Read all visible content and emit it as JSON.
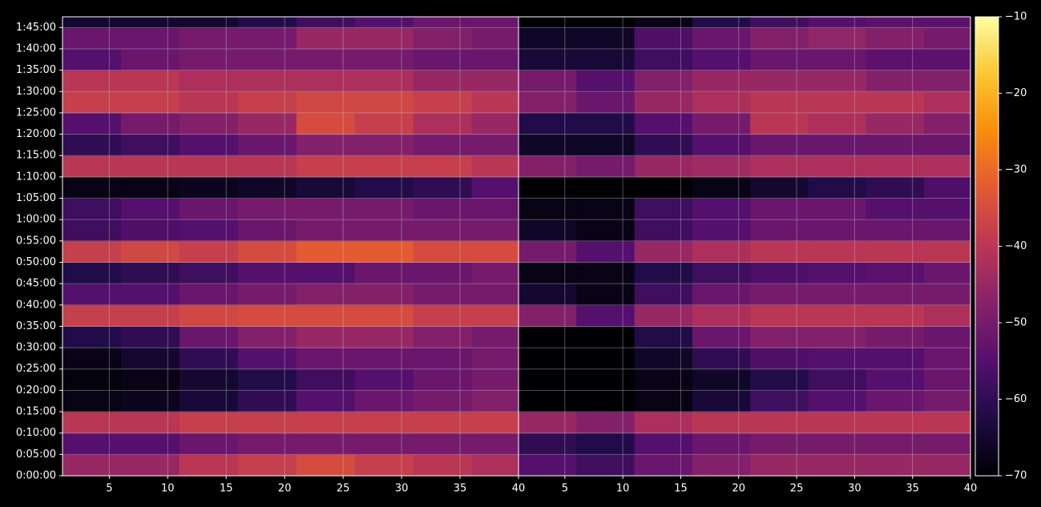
{
  "chart_data": {
    "type": "heatmap",
    "colormap": "inferno",
    "grid": true,
    "ylim": [
      0,
      6450
    ],
    "yticks": [
      {
        "value": 0,
        "label": "0:00:00"
      },
      {
        "value": 300,
        "label": "0:05:00"
      },
      {
        "value": 600,
        "label": "0:10:00"
      },
      {
        "value": 900,
        "label": "0:15:00"
      },
      {
        "value": 1200,
        "label": "0:20:00"
      },
      {
        "value": 1500,
        "label": "0:25:00"
      },
      {
        "value": 1800,
        "label": "0:30:00"
      },
      {
        "value": 2100,
        "label": "0:35:00"
      },
      {
        "value": 2400,
        "label": "0:40:00"
      },
      {
        "value": 2700,
        "label": "0:45:00"
      },
      {
        "value": 3000,
        "label": "0:50:00"
      },
      {
        "value": 3300,
        "label": "0:55:00"
      },
      {
        "value": 3600,
        "label": "1:00:00"
      },
      {
        "value": 3900,
        "label": "1:05:00"
      },
      {
        "value": 4200,
        "label": "1:10:00"
      },
      {
        "value": 4500,
        "label": "1:15:00"
      },
      {
        "value": 4800,
        "label": "1:20:00"
      },
      {
        "value": 5100,
        "label": "1:25:00"
      },
      {
        "value": 5400,
        "label": "1:30:00"
      },
      {
        "value": 5700,
        "label": "1:35:00"
      },
      {
        "value": 6000,
        "label": "1:40:00"
      },
      {
        "value": 6300,
        "label": "1:45:00"
      }
    ],
    "y_edges": [
      0,
      300,
      600,
      900,
      1200,
      1500,
      1800,
      2100,
      2400,
      2700,
      3000,
      3300,
      3600,
      3900,
      4200,
      4500,
      4800,
      5100,
      5400,
      5700,
      6000,
      6300,
      6450
    ],
    "colorbar": {
      "lim": [
        -70,
        -10
      ],
      "ticks": [
        {
          "value": -10,
          "label": "−10"
        },
        {
          "value": -20,
          "label": "−20"
        },
        {
          "value": -30,
          "label": "−30"
        },
        {
          "value": -40,
          "label": "−40"
        },
        {
          "value": -50,
          "label": "−50"
        },
        {
          "value": -60,
          "label": "−60"
        },
        {
          "value": -70,
          "label": "−70"
        }
      ]
    },
    "panels": [
      {
        "xlim": [
          1,
          40
        ],
        "xticks": [
          5,
          10,
          15,
          20,
          25,
          30,
          35,
          40
        ],
        "x_edges": [
          1,
          6,
          11,
          16,
          21,
          26,
          31,
          36,
          40
        ],
        "values": [
          [
            -45,
            -45,
            -40,
            -38,
            -35,
            -38,
            -40,
            -42
          ],
          [
            -55,
            -55,
            -52,
            -50,
            -50,
            -50,
            -50,
            -50
          ],
          [
            -40,
            -40,
            -38,
            -38,
            -38,
            -38,
            -38,
            -38
          ],
          [
            -68,
            -67,
            -64,
            -60,
            -55,
            -52,
            -50,
            -48
          ],
          [
            -69,
            -68,
            -65,
            -62,
            -58,
            -55,
            -52,
            -50
          ],
          [
            -68,
            -65,
            -60,
            -55,
            -52,
            -52,
            -52,
            -50
          ],
          [
            -62,
            -60,
            -52,
            -48,
            -45,
            -45,
            -48,
            -50
          ],
          [
            -38,
            -38,
            -36,
            -35,
            -35,
            -35,
            -38,
            -38
          ],
          [
            -55,
            -55,
            -52,
            -50,
            -48,
            -48,
            -50,
            -50
          ],
          [
            -62,
            -60,
            -58,
            -55,
            -55,
            -52,
            -52,
            -50
          ],
          [
            -38,
            -36,
            -38,
            -35,
            -32,
            -32,
            -35,
            -35
          ],
          [
            -58,
            -56,
            -55,
            -52,
            -50,
            -50,
            -50,
            -50
          ],
          [
            -58,
            -55,
            -52,
            -50,
            -50,
            -50,
            -52,
            -52
          ],
          [
            -68,
            -68,
            -67,
            -66,
            -64,
            -62,
            -60,
            -55
          ],
          [
            -40,
            -40,
            -40,
            -40,
            -38,
            -38,
            -38,
            -40
          ],
          [
            -60,
            -58,
            -55,
            -52,
            -48,
            -48,
            -50,
            -50
          ],
          [
            -55,
            -50,
            -48,
            -45,
            -35,
            -38,
            -42,
            -45
          ],
          [
            -38,
            -38,
            -40,
            -38,
            -36,
            -36,
            -38,
            -40
          ],
          [
            -40,
            -40,
            -42,
            -42,
            -42,
            -42,
            -45,
            -45
          ],
          [
            -55,
            -52,
            -50,
            -50,
            -50,
            -50,
            -52,
            -52
          ],
          [
            -52,
            -52,
            -50,
            -50,
            -45,
            -45,
            -48,
            -50
          ],
          [
            -65,
            -65,
            -65,
            -62,
            -58,
            -55,
            -52,
            -52
          ]
        ]
      },
      {
        "xlim": [
          1,
          40
        ],
        "xticks": [
          5,
          10,
          15,
          20,
          25,
          30,
          35,
          40
        ],
        "x_edges": [
          1,
          6,
          11,
          16,
          21,
          26,
          31,
          36,
          40
        ],
        "values": [
          [
            -55,
            -58,
            -52,
            -48,
            -45,
            -45,
            -45,
            -45
          ],
          [
            -60,
            -62,
            -55,
            -52,
            -50,
            -50,
            -50,
            -50
          ],
          [
            -45,
            -48,
            -42,
            -40,
            -40,
            -40,
            -40,
            -40
          ],
          [
            -70,
            -70,
            -68,
            -64,
            -58,
            -55,
            -52,
            -50
          ],
          [
            -70,
            -70,
            -68,
            -66,
            -62,
            -58,
            -55,
            -52
          ],
          [
            -70,
            -70,
            -66,
            -60,
            -56,
            -55,
            -55,
            -52
          ],
          [
            -70,
            -70,
            -62,
            -52,
            -48,
            -48,
            -50,
            -52
          ],
          [
            -48,
            -55,
            -45,
            -42,
            -40,
            -40,
            -40,
            -42
          ],
          [
            -65,
            -68,
            -58,
            -52,
            -50,
            -50,
            -50,
            -50
          ],
          [
            -68,
            -68,
            -62,
            -58,
            -56,
            -55,
            -54,
            -52
          ],
          [
            -50,
            -55,
            -45,
            -42,
            -40,
            -40,
            -40,
            -40
          ],
          [
            -66,
            -68,
            -58,
            -55,
            -52,
            -52,
            -52,
            -52
          ],
          [
            -68,
            -68,
            -58,
            -55,
            -52,
            -52,
            -55,
            -55
          ],
          [
            -70,
            -70,
            -70,
            -68,
            -65,
            -62,
            -60,
            -56
          ],
          [
            -48,
            -50,
            -45,
            -44,
            -42,
            -42,
            -42,
            -42
          ],
          [
            -66,
            -66,
            -60,
            -55,
            -52,
            -52,
            -52,
            -52
          ],
          [
            -62,
            -62,
            -55,
            -50,
            -40,
            -42,
            -45,
            -48
          ],
          [
            -48,
            -52,
            -45,
            -42,
            -40,
            -40,
            -40,
            -42
          ],
          [
            -50,
            -55,
            -48,
            -45,
            -45,
            -45,
            -48,
            -48
          ],
          [
            -64,
            -64,
            -58,
            -55,
            -52,
            -52,
            -54,
            -54
          ],
          [
            -66,
            -66,
            -56,
            -52,
            -48,
            -46,
            -48,
            -50
          ],
          [
            -70,
            -70,
            -68,
            -62,
            -58,
            -55,
            -54,
            -54
          ]
        ]
      }
    ]
  }
}
